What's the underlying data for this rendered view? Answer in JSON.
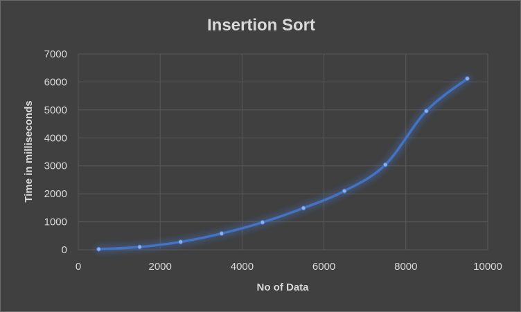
{
  "chart_data": {
    "type": "scatter",
    "title": "Insertion Sort",
    "xlabel": "No of Data",
    "ylabel": "Time in milliseconds",
    "xlim": [
      0,
      10000
    ],
    "ylim": [
      0,
      7000
    ],
    "x_ticks": [
      0,
      2000,
      4000,
      6000,
      8000,
      10000
    ],
    "y_ticks": [
      0,
      1000,
      2000,
      3000,
      4000,
      5000,
      6000,
      7000
    ],
    "grid": true,
    "legend": "none",
    "smooth_line": true,
    "markers": true,
    "series": [
      {
        "color": "#4472c4",
        "x": [
          500,
          1500,
          2500,
          3500,
          4500,
          5500,
          6500,
          7500,
          8500,
          9500
        ],
        "y": [
          20,
          100,
          280,
          580,
          980,
          1490,
          2100,
          3040,
          4960,
          6120
        ]
      }
    ]
  }
}
